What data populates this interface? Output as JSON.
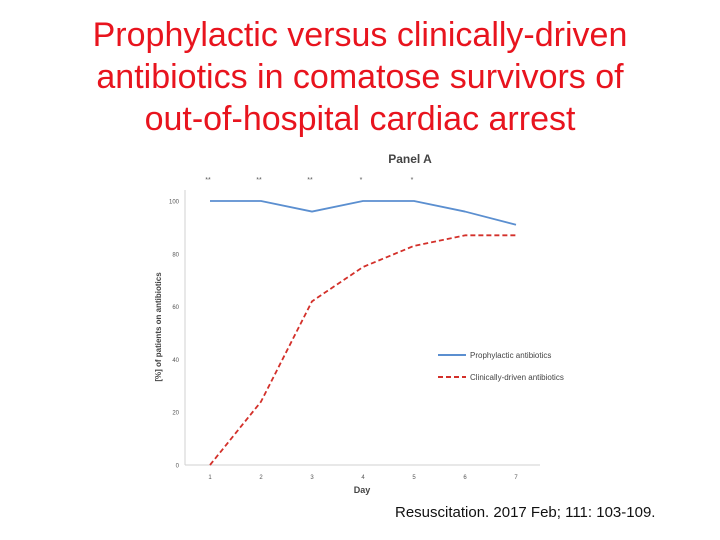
{
  "slide": {
    "title_lines": [
      "Prophylactic versus clinically-driven",
      "antibiotics in comatose survivors of",
      "out-of-hospital cardiac arrest"
    ],
    "citation": "Resuscitation. 2017 Feb; 111: 103-109.",
    "title_color": "#e8141e"
  },
  "chart_data": {
    "type": "line",
    "title": "Panel A",
    "xlabel": "Day",
    "ylabel": "[%] of patients on antibiotics",
    "categories": [
      "1",
      "2",
      "3",
      "4",
      "5",
      "6",
      "7"
    ],
    "yticks": [
      "0",
      "20",
      "40",
      "60",
      "80",
      "100"
    ],
    "ylim": [
      0,
      105
    ],
    "grid": false,
    "legend_position": "right",
    "significance": [
      "**",
      "**",
      "**",
      "*",
      "*"
    ],
    "series": [
      {
        "name": "Prophylactic antibiotics",
        "values": [
          100,
          100,
          96,
          100,
          100,
          96,
          91
        ],
        "color": "#5b8fd0",
        "style": "solid"
      },
      {
        "name": "Clinically-driven antibiotics",
        "values": [
          0,
          24,
          62,
          75,
          83,
          87,
          87
        ],
        "color": "#d3302a",
        "style": "dashed"
      }
    ]
  }
}
